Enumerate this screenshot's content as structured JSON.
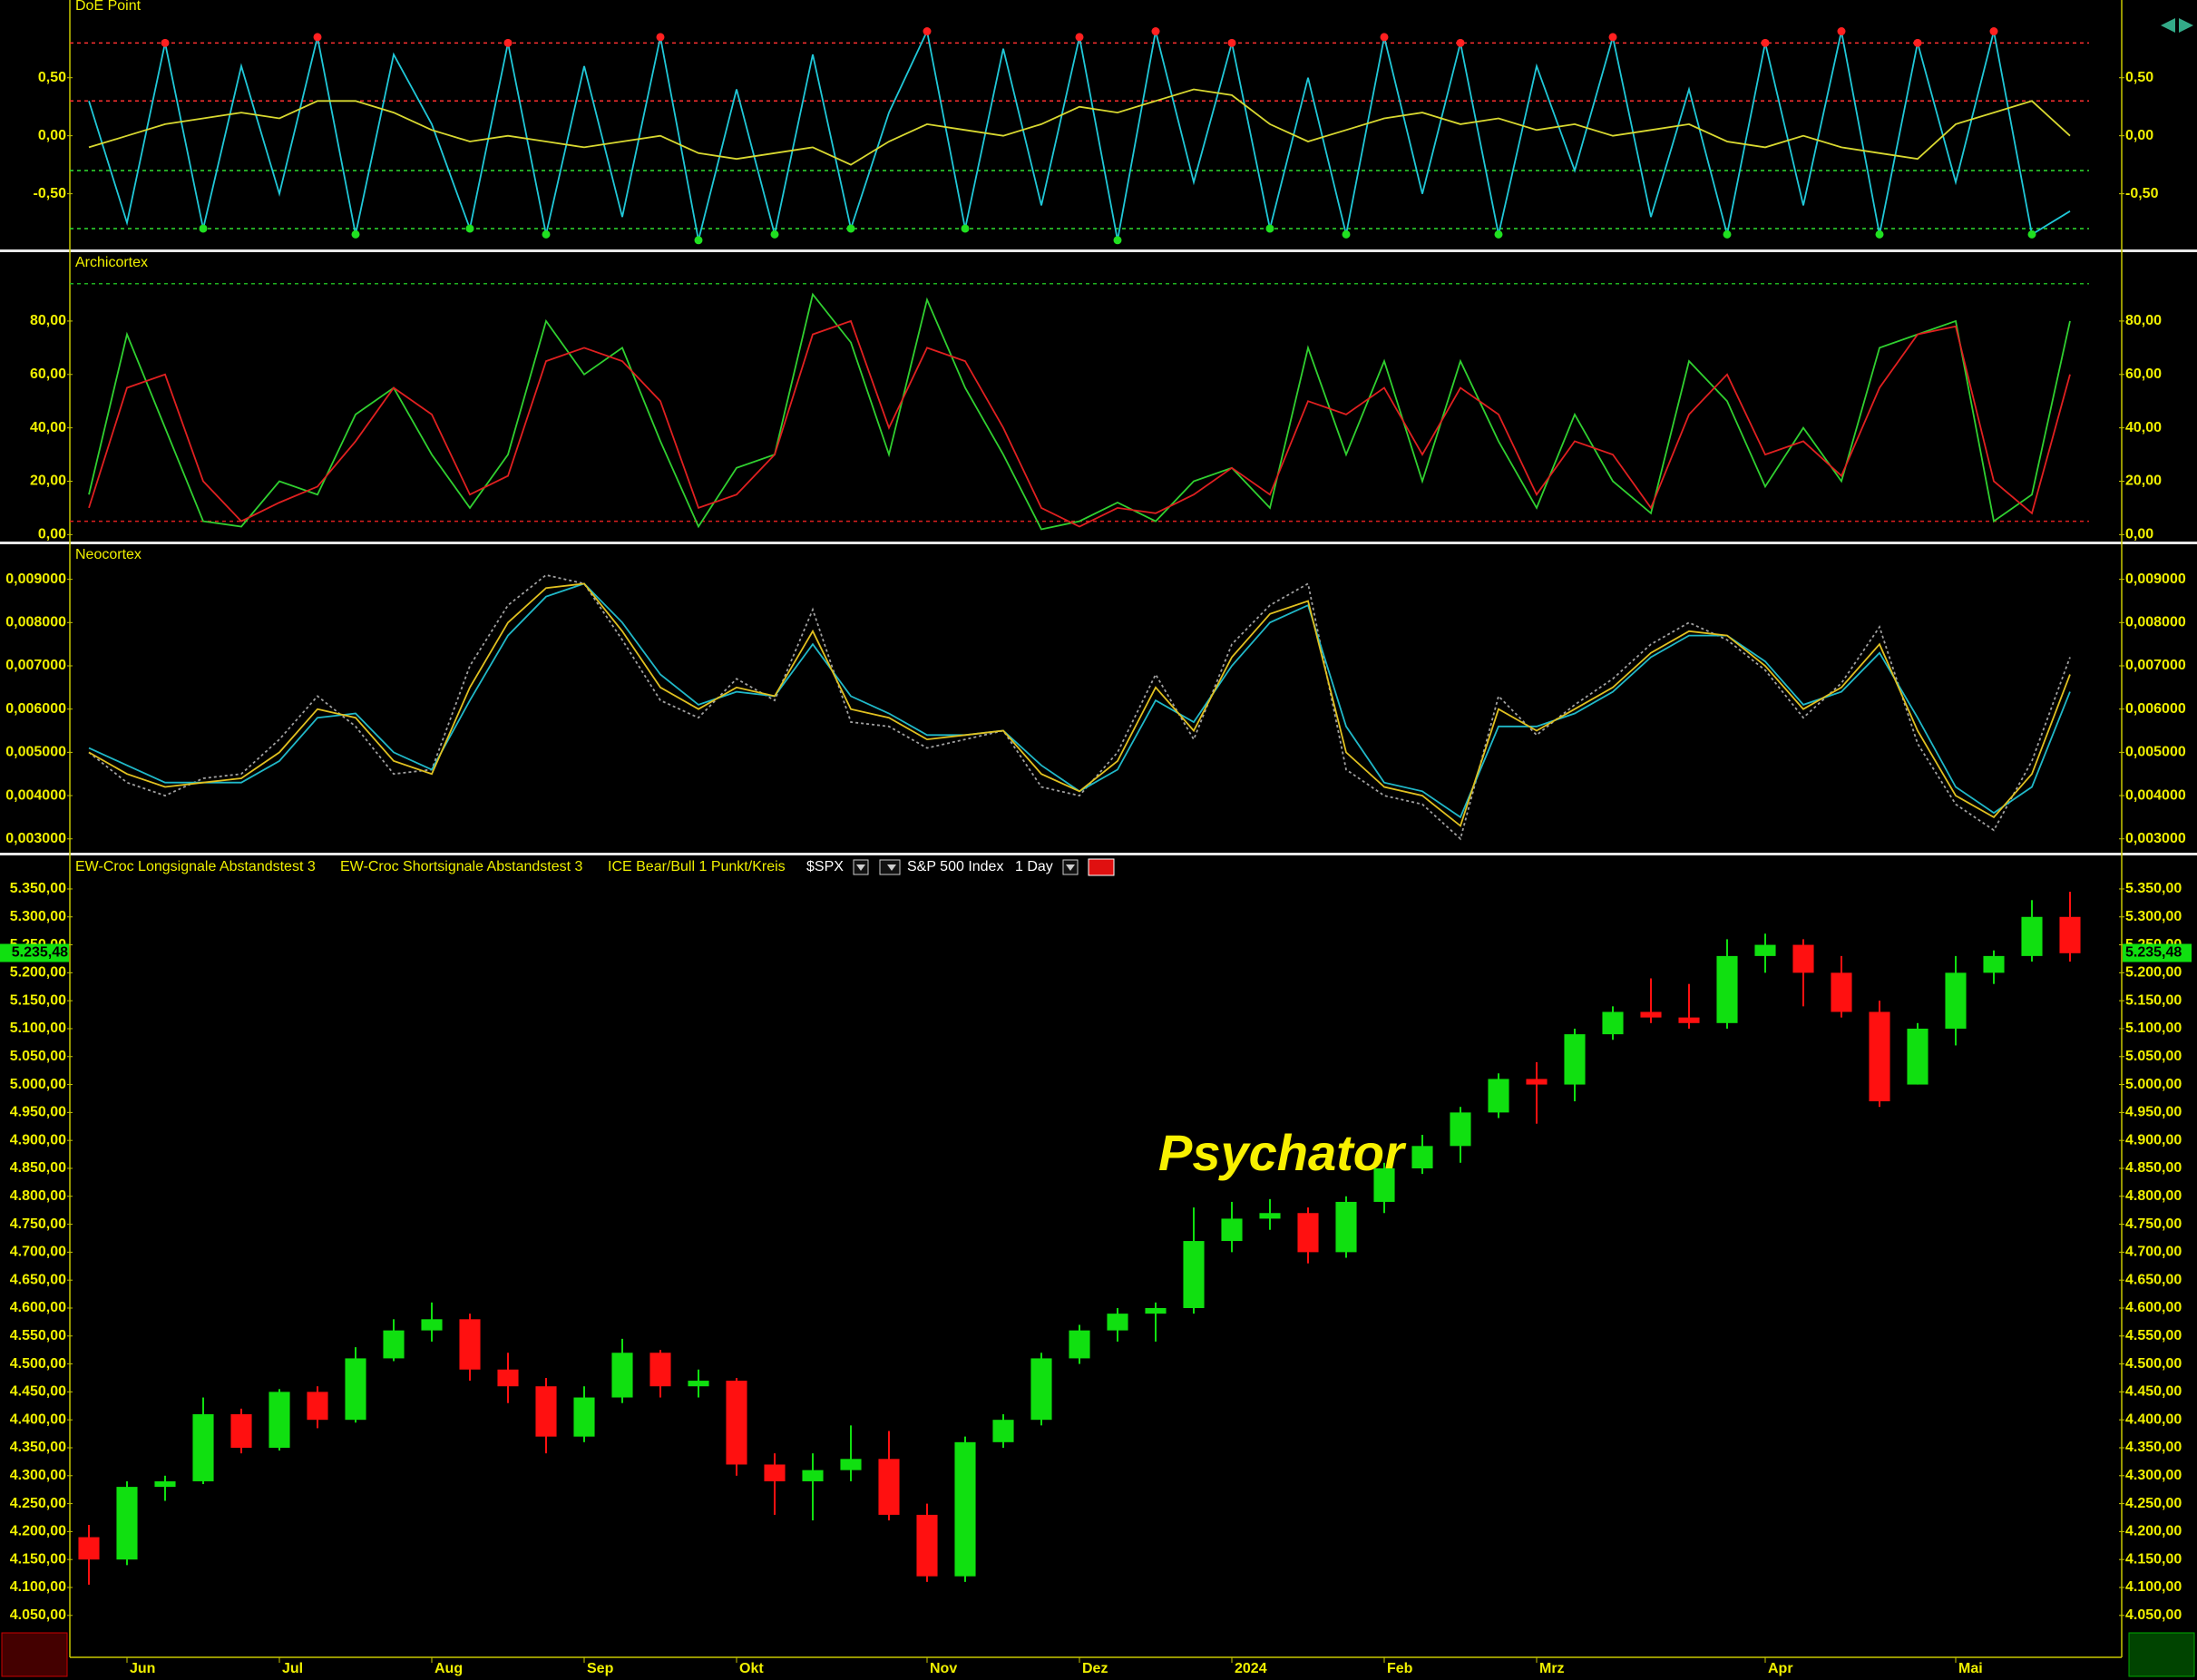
{
  "chart_data": [
    {
      "type": "line",
      "title": "DoE Point",
      "ylim": [
        -0.98,
        1.17
      ],
      "yticks": [
        {
          "value": 0.5,
          "label": "0,50"
        },
        {
          "value": 0,
          "label": "0,00"
        },
        {
          "value": -0.5,
          "label": "-0,50"
        }
      ],
      "grid": false,
      "hlines": [
        {
          "value": 0.8,
          "color": "#ff3030"
        },
        {
          "value": 0.3,
          "color": "#ff3030"
        },
        {
          "value": -0.3,
          "color": "#30e030"
        },
        {
          "value": -0.8,
          "color": "#30e030"
        }
      ],
      "signal_threshold": 0.8,
      "series": [
        {
          "color": "#20c8d8",
          "values": [
            0.3,
            -0.75,
            0.8,
            -0.8,
            0.6,
            -0.5,
            0.85,
            -0.85,
            0.7,
            0.1,
            -0.8,
            0.8,
            -0.85,
            0.6,
            -0.7,
            0.85,
            -0.9,
            0.4,
            -0.85,
            0.7,
            -0.8,
            0.2,
            0.9,
            -0.8,
            0.75,
            -0.6,
            0.85,
            -0.9,
            0.9,
            -0.4,
            0.8,
            -0.8,
            0.5,
            -0.85,
            0.85,
            -0.5,
            0.8,
            -0.85,
            0.6,
            -0.3,
            0.85,
            -0.7,
            0.4,
            -0.85,
            0.8,
            -0.6,
            0.9,
            -0.85,
            0.8,
            -0.4,
            0.9,
            -0.85,
            -0.65
          ]
        },
        {
          "color": "#d8d830",
          "values": [
            -0.1,
            0,
            0.1,
            0.15,
            0.2,
            0.15,
            0.3,
            0.3,
            0.2,
            0.05,
            -0.05,
            0,
            -0.05,
            -0.1,
            -0.05,
            0,
            -0.15,
            -0.2,
            -0.15,
            -0.1,
            -0.25,
            -0.05,
            0.1,
            0.05,
            0,
            0.1,
            0.25,
            0.2,
            0.3,
            0.4,
            0.35,
            0.1,
            -0.05,
            0.05,
            0.15,
            0.2,
            0.1,
            0.15,
            0.05,
            0.1,
            0,
            0.05,
            0.1,
            -0.05,
            -0.1,
            0,
            -0.1,
            -0.15,
            -0.2,
            0.1,
            0.2,
            0.3,
            0
          ]
        }
      ]
    },
    {
      "type": "line",
      "title": "Archicortex",
      "ylim": [
        -2.6,
        105.8
      ],
      "yticks": [
        {
          "value": 80,
          "label": "80,00"
        },
        {
          "value": 60,
          "label": "60,00"
        },
        {
          "value": 40,
          "label": "40,00"
        },
        {
          "value": 20,
          "label": "20,00"
        },
        {
          "value": 0,
          "label": "0,00"
        }
      ],
      "grid": false,
      "hlines": [
        {
          "value": 94,
          "color": "#20b020"
        },
        {
          "value": 5,
          "color": "#e02020"
        }
      ],
      "series": [
        {
          "color": "#30d030",
          "values": [
            15,
            75,
            40,
            5,
            3,
            20,
            15,
            45,
            55,
            30,
            10,
            30,
            80,
            60,
            70,
            35,
            3,
            25,
            30,
            90,
            72,
            30,
            88,
            55,
            30,
            2,
            5,
            12,
            5,
            20,
            25,
            10,
            70,
            30,
            65,
            20,
            65,
            35,
            10,
            45,
            20,
            8,
            65,
            50,
            18,
            40,
            20,
            70,
            75,
            80,
            5,
            15,
            80
          ]
        },
        {
          "color": "#e02020",
          "values": [
            10,
            55,
            60,
            20,
            5,
            12,
            18,
            35,
            55,
            45,
            15,
            22,
            65,
            70,
            65,
            50,
            10,
            15,
            30,
            75,
            80,
            40,
            70,
            65,
            40,
            10,
            3,
            10,
            8,
            15,
            25,
            15,
            50,
            45,
            55,
            30,
            55,
            45,
            15,
            35,
            30,
            10,
            45,
            60,
            30,
            35,
            22,
            55,
            75,
            78,
            20,
            8,
            60
          ]
        }
      ]
    },
    {
      "type": "line",
      "title": "Neocortex",
      "ylim": [
        0.00268,
        0.00981
      ],
      "yticks": [
        {
          "value": 0.009,
          "label": "0,009000"
        },
        {
          "value": 0.008,
          "label": "0,008000"
        },
        {
          "value": 0.007,
          "label": "0,007000"
        },
        {
          "value": 0.006,
          "label": "0,006000"
        },
        {
          "value": 0.005,
          "label": "0,005000"
        },
        {
          "value": 0.004,
          "label": "0,004000"
        },
        {
          "value": 0.003,
          "label": "0,003000"
        }
      ],
      "grid": false,
      "series": [
        {
          "color": "#a0a0a0",
          "dashed": true,
          "values": [
            0.005,
            0.0043,
            0.004,
            0.0044,
            0.0045,
            0.0053,
            0.0063,
            0.0056,
            0.0045,
            0.0046,
            0.007,
            0.0084,
            0.0091,
            0.0089,
            0.0076,
            0.0062,
            0.0058,
            0.0067,
            0.0062,
            0.0083,
            0.0057,
            0.0056,
            0.0051,
            0.0053,
            0.0055,
            0.0042,
            0.004,
            0.005,
            0.0068,
            0.0053,
            0.0075,
            0.0084,
            0.0089,
            0.0046,
            0.004,
            0.0038,
            0.003,
            0.0063,
            0.0054,
            0.0061,
            0.0067,
            0.0075,
            0.008,
            0.0076,
            0.0069,
            0.0058,
            0.0066,
            0.0079,
            0.0052,
            0.0038,
            0.0032,
            0.0048,
            0.0072
          ]
        },
        {
          "color": "#20b8c8",
          "values": [
            0.0051,
            0.0047,
            0.0043,
            0.0043,
            0.0043,
            0.0048,
            0.0058,
            0.0059,
            0.005,
            0.0046,
            0.0062,
            0.0077,
            0.0086,
            0.0089,
            0.008,
            0.0068,
            0.0061,
            0.0064,
            0.0063,
            0.0075,
            0.0063,
            0.0059,
            0.0054,
            0.0054,
            0.0055,
            0.0047,
            0.0041,
            0.0046,
            0.0062,
            0.0057,
            0.007,
            0.008,
            0.0084,
            0.0056,
            0.0043,
            0.0041,
            0.0035,
            0.0056,
            0.0056,
            0.0059,
            0.0064,
            0.0072,
            0.0077,
            0.0077,
            0.0071,
            0.0061,
            0.0064,
            0.0073,
            0.0058,
            0.0042,
            0.0036,
            0.0042,
            0.0064
          ]
        },
        {
          "color": "#e0c020",
          "values": [
            0.005,
            0.0045,
            0.0042,
            0.0043,
            0.0044,
            0.005,
            0.006,
            0.0058,
            0.0048,
            0.0045,
            0.0065,
            0.008,
            0.0088,
            0.0089,
            0.0078,
            0.0065,
            0.006,
            0.0065,
            0.0063,
            0.0078,
            0.006,
            0.0058,
            0.0053,
            0.0054,
            0.0055,
            0.0045,
            0.0041,
            0.0048,
            0.0065,
            0.0055,
            0.0072,
            0.0082,
            0.0085,
            0.005,
            0.0042,
            0.004,
            0.0033,
            0.006,
            0.0055,
            0.006,
            0.0065,
            0.0073,
            0.0078,
            0.0077,
            0.007,
            0.006,
            0.0065,
            0.0075,
            0.0055,
            0.004,
            0.0035,
            0.0045,
            0.0068
          ]
        }
      ]
    },
    {
      "type": "candlestick",
      "indicators": [
        "EW-Croc Longsignale Abstandstest 3",
        "EW-Croc Shortsignale Abstandstest 3",
        "ICE Bear/Bull 1 Punkt/Kreis"
      ],
      "symbol": "$SPX",
      "name": "S&P 500 Index",
      "interval": "1 Day",
      "annotation": "Psychator",
      "last_price": {
        "value": 5235.48,
        "label": "5.235,48"
      },
      "up_color": "#10e010",
      "down_color": "#ff1010",
      "ylim": [
        3975,
        5410
      ],
      "yticks": [
        {
          "value": 5350,
          "label": "5.350,00"
        },
        {
          "value": 5300,
          "label": "5.300,00"
        },
        {
          "value": 5250,
          "label": "5.250,00"
        },
        {
          "value": 5200,
          "label": "5.200,00"
        },
        {
          "value": 5150,
          "label": "5.150,00"
        },
        {
          "value": 5100,
          "label": "5.100,00"
        },
        {
          "value": 5050,
          "label": "5.050,00"
        },
        {
          "value": 5000,
          "label": "5.000,00"
        },
        {
          "value": 4950,
          "label": "4.950,00"
        },
        {
          "value": 4900,
          "label": "4.900,00"
        },
        {
          "value": 4850,
          "label": "4.850,00"
        },
        {
          "value": 4800,
          "label": "4.800,00"
        },
        {
          "value": 4750,
          "label": "4.750,00"
        },
        {
          "value": 4700,
          "label": "4.700,00"
        },
        {
          "value": 4650,
          "label": "4.650,00"
        },
        {
          "value": 4600,
          "label": "4.600,00"
        },
        {
          "value": 4550,
          "label": "4.550,00"
        },
        {
          "value": 4500,
          "label": "4.500,00"
        },
        {
          "value": 4450,
          "label": "4.450,00"
        },
        {
          "value": 4400,
          "label": "4.400,00"
        },
        {
          "value": 4350,
          "label": "4.350,00"
        },
        {
          "value": 4300,
          "label": "4.300,00"
        },
        {
          "value": 4250,
          "label": "4.250,00"
        },
        {
          "value": 4200,
          "label": "4.200,00"
        },
        {
          "value": 4150,
          "label": "4.150,00"
        },
        {
          "value": 4100,
          "label": "4.100,00"
        },
        {
          "value": 4050,
          "label": "4.050,00"
        }
      ],
      "grid": false,
      "categories": [
        null,
        "Jun",
        null,
        null,
        null,
        "Jul",
        null,
        null,
        null,
        "Aug",
        null,
        null,
        null,
        "Sep",
        null,
        null,
        null,
        "Okt",
        null,
        null,
        null,
        null,
        "Nov",
        null,
        null,
        null,
        "Dez",
        null,
        null,
        null,
        "2024",
        null,
        null,
        null,
        "Feb",
        null,
        null,
        null,
        "Mrz",
        null,
        null,
        null,
        null,
        null,
        "Apr",
        null,
        null,
        null,
        null,
        "Mai",
        null,
        null,
        null
      ],
      "open": [
        4190,
        4150,
        4280,
        4290,
        4410,
        4350,
        4450,
        4400,
        4510,
        4560,
        4580,
        4490,
        4460,
        4370,
        4440,
        4520,
        4460,
        4470,
        4320,
        4290,
        4310,
        4330,
        4230,
        4120,
        4360,
        4400,
        4510,
        4560,
        4590,
        4600,
        4720,
        4760,
        4770,
        4700,
        4790,
        4850,
        4890,
        4950,
        5010,
        5000,
        5090,
        5130,
        5120,
        5110,
        5230,
        5250,
        5200,
        5130,
        5000,
        5100,
        5200,
        5230,
        5300
      ],
      "high": [
        4212,
        4290,
        4300,
        4440,
        4420,
        4455,
        4460,
        4530,
        4580,
        4610,
        4590,
        4520,
        4475,
        4460,
        4545,
        4525,
        4490,
        4475,
        4340,
        4340,
        4390,
        4380,
        4250,
        4370,
        4410,
        4520,
        4570,
        4600,
        4610,
        4780,
        4790,
        4795,
        4780,
        4800,
        4860,
        4910,
        4960,
        5020,
        5040,
        5100,
        5140,
        5190,
        5180,
        5260,
        5270,
        5260,
        5230,
        5150,
        5110,
        5230,
        5240,
        5330,
        5345
      ],
      "low": [
        4105,
        4140,
        4255,
        4285,
        4340,
        4345,
        4385,
        4395,
        4505,
        4540,
        4470,
        4430,
        4340,
        4360,
        4430,
        4440,
        4440,
        4300,
        4230,
        4220,
        4290,
        4220,
        4110,
        4110,
        4350,
        4390,
        4500,
        4540,
        4540,
        4590,
        4700,
        4740,
        4680,
        4690,
        4770,
        4840,
        4860,
        4940,
        4930,
        4970,
        5080,
        5110,
        5100,
        5100,
        5200,
        5140,
        5120,
        4960,
        5000,
        5070,
        5180,
        5220,
        5220
      ],
      "close": [
        4150,
        4280,
        4290,
        4410,
        4350,
        4450,
        4400,
        4510,
        4560,
        4580,
        4490,
        4460,
        4370,
        4440,
        4520,
        4460,
        4470,
        4320,
        4290,
        4310,
        4330,
        4230,
        4120,
        4360,
        4400,
        4510,
        4560,
        4590,
        4600,
        4720,
        4760,
        4770,
        4700,
        4790,
        4850,
        4890,
        4950,
        5010,
        5000,
        5090,
        5130,
        5120,
        5110,
        5230,
        5250,
        5200,
        5130,
        4970,
        5100,
        5200,
        5230,
        5300,
        5235
      ]
    }
  ]
}
